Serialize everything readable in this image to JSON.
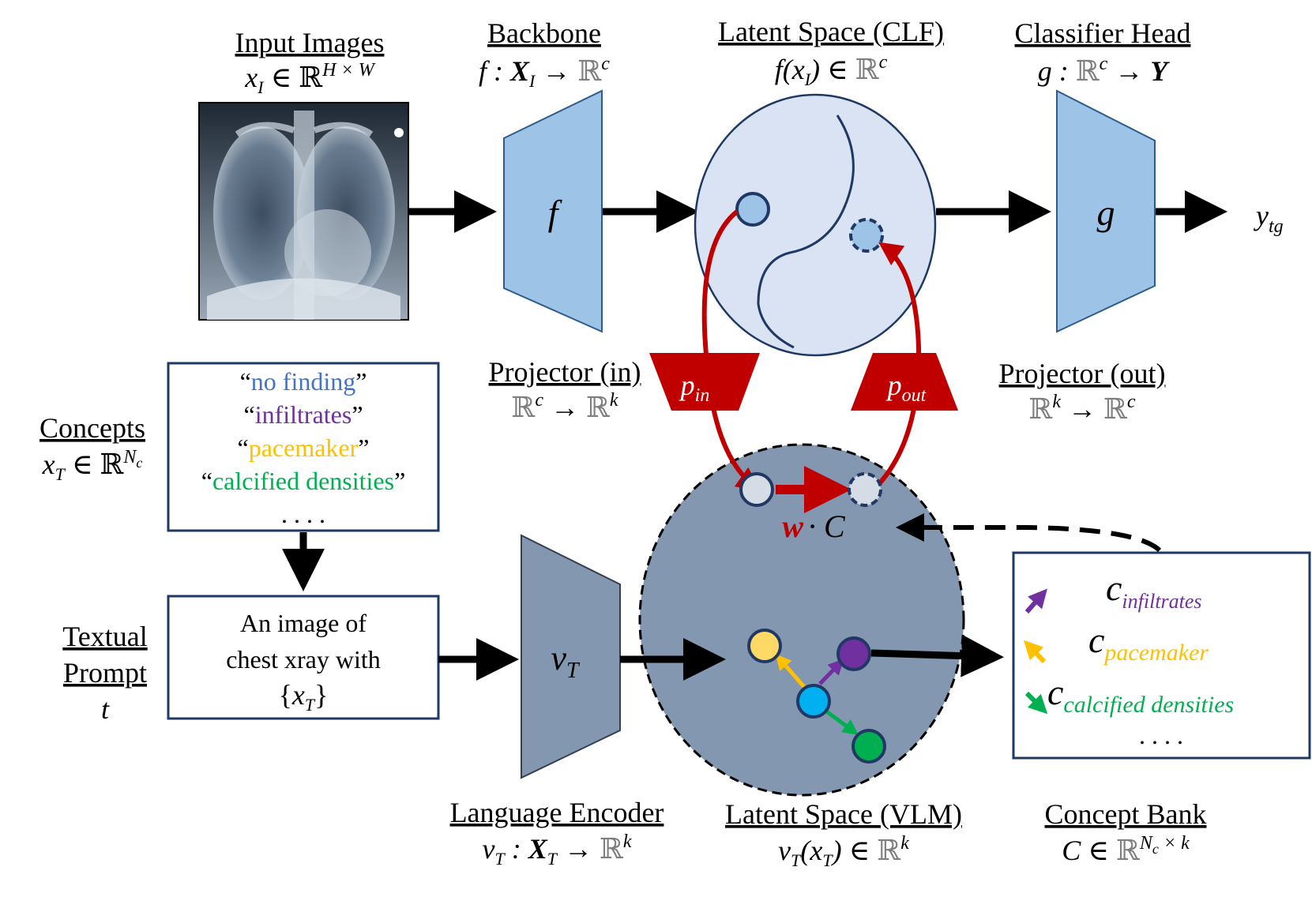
{
  "colors": {
    "blue_shape": "#9dc3e6",
    "slate_shape": "#8497b0",
    "clf_space": "#dae3f3",
    "dark_outline": "#1f3864",
    "red": "#c00000",
    "node_blue": "#9dc3e6",
    "node_light": "#d6dce5",
    "concept_no_finding": "#4472c4",
    "concept_infiltrates": "#7030a0",
    "concept_pacemaker": "#ffc000",
    "concept_calcified": "#00b050",
    "node_cyan": "#00b0f0"
  },
  "headers": {
    "input_images": {
      "title": "Input Images",
      "formula": "x_I ∈ ℝ^{H×W}"
    },
    "backbone": {
      "title": "Backbone",
      "formula": "f : X_I → ℝ^c"
    },
    "latent_clf": {
      "title": "Latent Space (CLF)",
      "formula": "f(x_I) ∈ ℝ^c"
    },
    "classifier_head": {
      "title": "Classifier Head",
      "formula": "g : ℝ^c → Y"
    },
    "projector_in": {
      "title": "Projector (in)",
      "formula": "ℝ^c → ℝ^k"
    },
    "projector_out": {
      "title": "Projector (out)",
      "formula": "ℝ^k → ℝ^c"
    },
    "concepts": {
      "title": "Concepts",
      "formula": "x_T ∈ ℝ^{N_c}"
    },
    "textual_prompt": {
      "title_line1": "Textual",
      "title_line2": "Prompt",
      "symbol": "t"
    },
    "language_encoder": {
      "title": "Language Encoder",
      "formula": "v_T : X_T → ℝ^k"
    },
    "latent_vlm": {
      "title": "Latent Space (VLM)",
      "formula": "v_T(x_T) ∈ ℝ^k"
    },
    "concept_bank": {
      "title": "Concept Bank",
      "formula": "C ∈ ℝ^{N_c×k}"
    }
  },
  "blocks": {
    "backbone_symbol": "f",
    "head_symbol": "g",
    "output_symbol": "y_tg",
    "encoder_symbol": "v_T",
    "projector_in_symbol": "p_in",
    "projector_out_symbol": "p_out",
    "w_symbol": "w",
    "dot_c": "· C"
  },
  "concepts_box": {
    "items": [
      {
        "text": "no finding",
        "color_key": "concept_no_finding"
      },
      {
        "text": "infiltrates",
        "color_key": "concept_infiltrates"
      },
      {
        "text": "pacemaker",
        "color_key": "concept_pacemaker"
      },
      {
        "text": "calcified densities",
        "color_key": "concept_calcified"
      }
    ],
    "ellipsis": ". . . ."
  },
  "prompt_box": {
    "line1": "An image of",
    "line2": "chest xray with",
    "line3": "{x_T}"
  },
  "concept_bank_box": {
    "items": [
      {
        "subscript": "infiltrates",
        "color_key": "concept_infiltrates"
      },
      {
        "subscript": "pacemaker",
        "color_key": "concept_pacemaker"
      },
      {
        "subscript": "calcified densities",
        "color_key": "concept_calcified"
      }
    ],
    "letter": "c",
    "ellipsis": ". . . ."
  }
}
